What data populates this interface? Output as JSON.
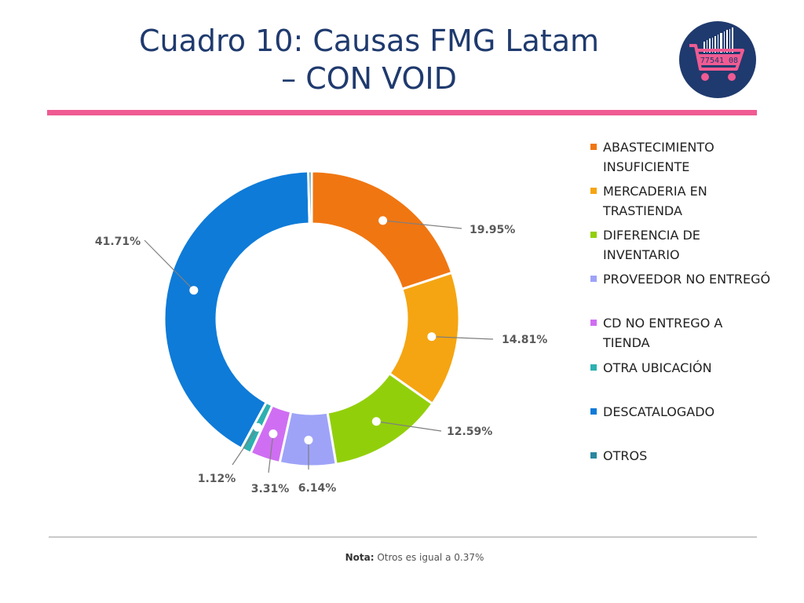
{
  "title_line1": "Cuadro 10: Causas FMG Latam",
  "title_line2": "– CON VOID",
  "note_label": "Nota:",
  "note_text": " Otros es igual a 0.37%",
  "logo": {
    "icon": "shopping-cart-barcode-icon",
    "text": "77541 08",
    "bg": "#1f3a6e",
    "accent": "#ef5b92"
  },
  "chart_data": {
    "type": "pie",
    "subtype": "donut",
    "title": "Cuadro 10: Causas FMG Latam – CON VOID",
    "legend_position": "right",
    "categories": [
      "ABASTECIMIENTO INSUFICIENTE",
      "MERCADERIA EN TRASTIENDA",
      "DIFERENCIA DE INVENTARIO",
      "PROVEEDOR NO ENTREGÓ",
      "CD NO ENTREGO A TIENDA",
      "OTRA UBICACIÓN",
      "DESCATALOGADO",
      "OTROS"
    ],
    "values": [
      19.95,
      14.81,
      12.59,
      6.14,
      3.31,
      1.12,
      41.71,
      0.37
    ],
    "data_labels": [
      "19.95%",
      "14.81%",
      "12.59%",
      "6.14%",
      "3.31%",
      "1.12%",
      "41.71%",
      ""
    ],
    "legend_lines": [
      [
        "ABASTECIMIENTO",
        "INSUFICIENTE"
      ],
      [
        "MERCADERIA EN",
        "TRASTIENDA"
      ],
      [
        "DIFERENCIA DE",
        "INVENTARIO"
      ],
      [
        "PROVEEDOR NO ENTREGÓ"
      ],
      [
        "CD NO ENTREGO A",
        "TIENDA"
      ],
      [
        "OTRA UBICACIÓN"
      ],
      [
        "DESCATALOGADO"
      ],
      [
        "OTROS"
      ]
    ],
    "colors": [
      "#f07612",
      "#f5a511",
      "#92cf0b",
      "#9ea3f8",
      "#cf6ef2",
      "#2db0b1",
      "#0e7bd8",
      "#2b87a0"
    ]
  }
}
